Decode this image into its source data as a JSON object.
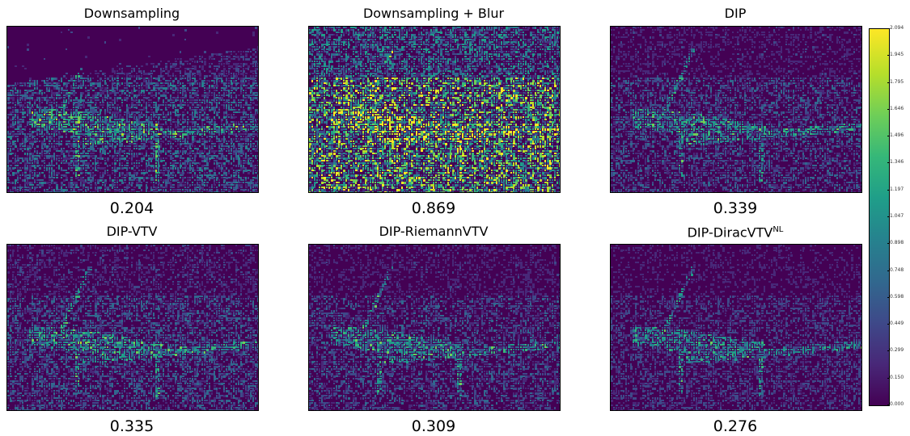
{
  "colors": {
    "low": "#440154",
    "mid_low": "#3b528b",
    "mid": "#21918c",
    "mid_high": "#5ec962",
    "high": "#fde725"
  },
  "panels": [
    {
      "title": "Downsampling",
      "title_sup": "",
      "score": "0.204",
      "noise_level": 0.45,
      "sky_dark": true
    },
    {
      "title": "Downsampling + Blur",
      "title_sup": "",
      "score": "0.869",
      "noise_level": 0.95,
      "sky_dark": false
    },
    {
      "title": "DIP",
      "title_sup": "",
      "score": "0.339",
      "noise_level": 0.35,
      "sky_dark": false
    },
    {
      "title": "DIP-VTV",
      "title_sup": "",
      "score": "0.335",
      "noise_level": 0.38,
      "sky_dark": false
    },
    {
      "title": "DIP-RiemannVTV",
      "title_sup": "",
      "score": "0.309",
      "noise_level": 0.34,
      "sky_dark": false
    },
    {
      "title": "DIP-DiracVTV",
      "title_sup": "NL",
      "score": "0.276",
      "noise_level": 0.3,
      "sky_dark": false
    }
  ],
  "colorbar": {
    "ticks": [
      "2.094",
      "1.945",
      "1.795",
      "1.646",
      "1.496",
      "1.346",
      "1.197",
      "1.047",
      "0.898",
      "0.748",
      "0.598",
      "0.449",
      "0.299",
      "0.150",
      "0.000"
    ],
    "min": 0.0,
    "max": 2.094
  }
}
